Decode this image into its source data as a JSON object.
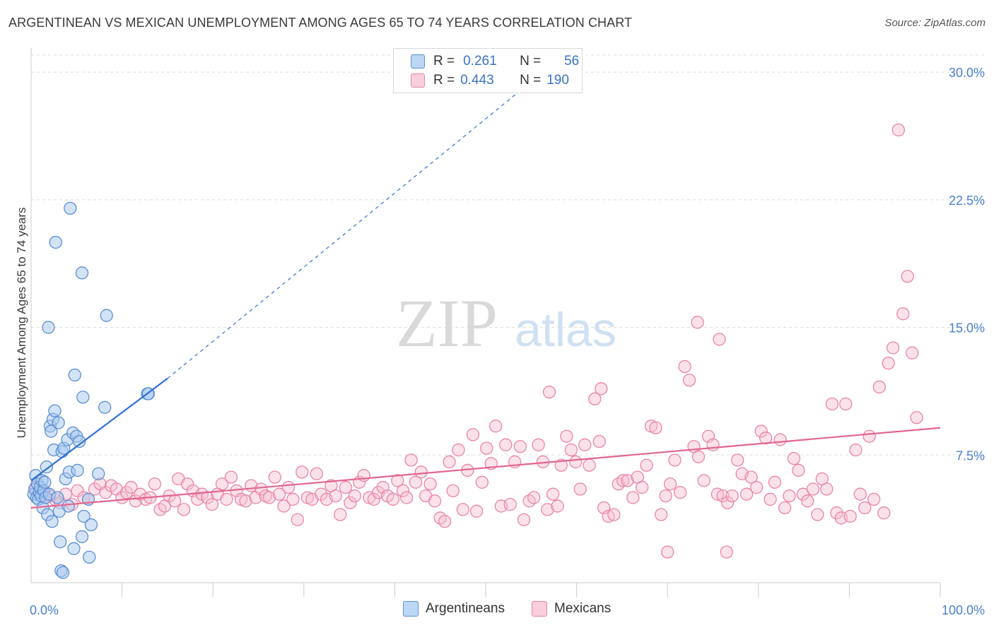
{
  "title": "ARGENTINEAN VS MEXICAN UNEMPLOYMENT AMONG AGES 65 TO 74 YEARS CORRELATION CHART",
  "source": "Source: ZipAtlas.com",
  "watermark": {
    "zip": "ZIP",
    "atlas": "atlas"
  },
  "colors": {
    "argentineans_fill": "#a8c8ee",
    "argentineans_stroke": "#5b8fd6",
    "argentineans_line": "#2f6fd0",
    "mexicans_fill": "#f6bfd0",
    "mexicans_stroke": "#e984a8",
    "mexicans_line": "#e2668f",
    "tick_label": "#4a7fd0",
    "grid": "#dddddd"
  },
  "legend": {
    "rows": [
      {
        "r_label": "R =",
        "r_value": "0.261",
        "n_label": "N =",
        "n_value": "56"
      },
      {
        "r_label": "R =",
        "r_value": "0.443",
        "n_label": "N =",
        "n_value": "190"
      }
    ]
  },
  "bottom_legend": [
    "Argentineans",
    "Mexicans"
  ],
  "chart_data": {
    "type": "scatter",
    "title": "ARGENTINEAN VS MEXICAN UNEMPLOYMENT AMONG AGES 65 TO 74 YEARS CORRELATION CHART",
    "xlabel": "",
    "ylabel": "Unemployment Among Ages 65 to 74 years",
    "xlim": [
      0,
      100
    ],
    "ylim": [
      0,
      31
    ],
    "x_tick_labels": [
      "0.0%",
      "100.0%"
    ],
    "y_ticks": [
      7.5,
      15.0,
      22.5,
      30.0
    ],
    "y_tick_labels": [
      "7.5%",
      "15.0%",
      "22.5%",
      "30.0%"
    ],
    "grid": true,
    "legend_position": "top-center",
    "series": [
      {
        "name": "Argentineans",
        "R": 0.261,
        "N": 56,
        "trend": {
          "x0": 0,
          "y0": 6.0,
          "x1": 15,
          "y1": 12.0,
          "dashed_to_x": 54,
          "dashed_to_y": 29.0
        },
        "points": [
          [
            0.3,
            5.2
          ],
          [
            0.4,
            5.5
          ],
          [
            0.5,
            6.3
          ],
          [
            0.6,
            5.0
          ],
          [
            0.7,
            5.8
          ],
          [
            0.8,
            4.9
          ],
          [
            0.9,
            5.3
          ],
          [
            1.0,
            5.6
          ],
          [
            1.1,
            5.1
          ],
          [
            1.2,
            6.0
          ],
          [
            1.3,
            4.4
          ],
          [
            1.4,
            5.4
          ],
          [
            1.5,
            5.9
          ],
          [
            1.6,
            5.0
          ],
          [
            1.7,
            6.8
          ],
          [
            1.8,
            4.0
          ],
          [
            1.9,
            15.0
          ],
          [
            2.0,
            5.2
          ],
          [
            2.1,
            9.2
          ],
          [
            2.2,
            8.9
          ],
          [
            2.3,
            3.6
          ],
          [
            2.4,
            9.6
          ],
          [
            2.5,
            7.8
          ],
          [
            2.6,
            10.1
          ],
          [
            2.7,
            20.0
          ],
          [
            2.9,
            5.0
          ],
          [
            3.0,
            9.4
          ],
          [
            3.1,
            4.2
          ],
          [
            3.2,
            2.4
          ],
          [
            3.3,
            0.7
          ],
          [
            3.4,
            7.7
          ],
          [
            3.5,
            0.6
          ],
          [
            3.6,
            7.9
          ],
          [
            3.8,
            6.1
          ],
          [
            4.0,
            8.4
          ],
          [
            4.1,
            4.5
          ],
          [
            4.2,
            6.5
          ],
          [
            4.3,
            22.0
          ],
          [
            4.6,
            8.8
          ],
          [
            4.7,
            2.0
          ],
          [
            4.8,
            12.2
          ],
          [
            5.0,
            8.6
          ],
          [
            5.1,
            6.6
          ],
          [
            5.3,
            8.3
          ],
          [
            5.6,
            18.2
          ],
          [
            5.6,
            2.7
          ],
          [
            5.7,
            10.9
          ],
          [
            5.8,
            3.9
          ],
          [
            6.3,
            4.9
          ],
          [
            6.4,
            1.5
          ],
          [
            6.6,
            3.4
          ],
          [
            7.4,
            6.4
          ],
          [
            8.1,
            10.3
          ],
          [
            8.3,
            15.7
          ],
          [
            12.8,
            11.1
          ],
          [
            12.9,
            11.1
          ]
        ]
      },
      {
        "name": "Mexicans",
        "R": 0.443,
        "N": 190,
        "trend": {
          "x0": 0,
          "y0": 4.4,
          "x1": 100,
          "y1": 9.1
        },
        "points": [
          [
            0.5,
            5.6
          ],
          [
            1.2,
            5.4
          ],
          [
            2.0,
            5.1
          ],
          [
            2.6,
            4.9
          ],
          [
            3.2,
            4.7
          ],
          [
            3.8,
            5.2
          ],
          [
            4.5,
            4.6
          ],
          [
            5.1,
            5.4
          ],
          [
            5.8,
            5.0
          ],
          [
            6.3,
            4.9
          ],
          [
            7.0,
            5.5
          ],
          [
            7.6,
            5.8
          ],
          [
            8.2,
            5.3
          ],
          [
            8.8,
            5.7
          ],
          [
            9.4,
            5.5
          ],
          [
            10.0,
            5.0
          ],
          [
            10.5,
            5.3
          ],
          [
            11.0,
            5.6
          ],
          [
            11.5,
            4.8
          ],
          [
            12.0,
            5.2
          ],
          [
            12.6,
            4.9
          ],
          [
            13.1,
            5.0
          ],
          [
            13.6,
            5.8
          ],
          [
            14.2,
            4.3
          ],
          [
            14.7,
            4.5
          ],
          [
            15.2,
            5.1
          ],
          [
            15.8,
            4.8
          ],
          [
            16.2,
            6.1
          ],
          [
            16.8,
            4.3
          ],
          [
            17.2,
            5.8
          ],
          [
            17.8,
            5.4
          ],
          [
            18.3,
            4.9
          ],
          [
            18.8,
            5.2
          ],
          [
            19.4,
            5.0
          ],
          [
            19.9,
            4.6
          ],
          [
            20.5,
            5.2
          ],
          [
            21.0,
            5.8
          ],
          [
            21.5,
            4.9
          ],
          [
            22.0,
            6.2
          ],
          [
            22.6,
            5.4
          ],
          [
            23.1,
            4.9
          ],
          [
            23.6,
            4.8
          ],
          [
            24.2,
            5.7
          ],
          [
            24.7,
            5.0
          ],
          [
            25.3,
            5.5
          ],
          [
            25.8,
            5.1
          ],
          [
            26.2,
            5.0
          ],
          [
            26.8,
            6.2
          ],
          [
            27.3,
            5.2
          ],
          [
            27.8,
            4.5
          ],
          [
            28.3,
            5.6
          ],
          [
            28.8,
            4.9
          ],
          [
            29.3,
            3.7
          ],
          [
            29.8,
            6.5
          ],
          [
            30.4,
            5.0
          ],
          [
            30.9,
            4.9
          ],
          [
            31.4,
            6.4
          ],
          [
            31.9,
            5.2
          ],
          [
            32.5,
            4.9
          ],
          [
            33.0,
            5.7
          ],
          [
            33.5,
            5.1
          ],
          [
            34.0,
            4.0
          ],
          [
            34.6,
            5.6
          ],
          [
            35.1,
            4.7
          ],
          [
            35.6,
            5.1
          ],
          [
            36.1,
            5.9
          ],
          [
            36.6,
            6.3
          ],
          [
            37.2,
            5.0
          ],
          [
            37.7,
            4.9
          ],
          [
            38.2,
            5.3
          ],
          [
            38.7,
            5.6
          ],
          [
            39.2,
            5.1
          ],
          [
            39.8,
            4.9
          ],
          [
            40.3,
            6.0
          ],
          [
            40.9,
            5.4
          ],
          [
            41.3,
            5.0
          ],
          [
            41.8,
            7.2
          ],
          [
            42.3,
            5.9
          ],
          [
            42.9,
            6.5
          ],
          [
            43.4,
            5.1
          ],
          [
            43.9,
            5.8
          ],
          [
            44.4,
            4.8
          ],
          [
            45.0,
            3.8
          ],
          [
            45.5,
            3.6
          ],
          [
            46.0,
            7.1
          ],
          [
            46.4,
            5.4
          ],
          [
            47.0,
            7.8
          ],
          [
            47.5,
            4.3
          ],
          [
            48.0,
            6.6
          ],
          [
            48.6,
            8.7
          ],
          [
            49.0,
            4.2
          ],
          [
            49.6,
            5.9
          ],
          [
            50.1,
            7.9
          ],
          [
            50.6,
            7.0
          ],
          [
            51.1,
            9.2
          ],
          [
            51.7,
            4.5
          ],
          [
            52.2,
            8.1
          ],
          [
            52.7,
            4.6
          ],
          [
            53.2,
            7.1
          ],
          [
            53.8,
            8.0
          ],
          [
            54.2,
            3.7
          ],
          [
            54.8,
            4.8
          ],
          [
            55.3,
            5.0
          ],
          [
            55.8,
            8.1
          ],
          [
            56.3,
            7.1
          ],
          [
            56.8,
            4.3
          ],
          [
            57.4,
            5.2
          ],
          [
            57.9,
            4.5
          ],
          [
            58.3,
            6.9
          ],
          [
            58.9,
            8.6
          ],
          [
            59.4,
            7.8
          ],
          [
            59.9,
            7.1
          ],
          [
            60.4,
            5.5
          ],
          [
            60.9,
            8.1
          ],
          [
            61.4,
            6.9
          ],
          [
            62.0,
            10.8
          ],
          [
            62.5,
            8.3
          ],
          [
            63.0,
            4.4
          ],
          [
            63.5,
            3.9
          ],
          [
            64.1,
            4.0
          ],
          [
            64.6,
            5.8
          ],
          [
            65.1,
            6.0
          ],
          [
            65.6,
            6.0
          ],
          [
            66.2,
            5.0
          ],
          [
            66.7,
            6.2
          ],
          [
            67.2,
            5.6
          ],
          [
            67.7,
            6.9
          ],
          [
            68.2,
            9.2
          ],
          [
            68.7,
            9.1
          ],
          [
            69.3,
            4.0
          ],
          [
            69.8,
            5.1
          ],
          [
            70.3,
            5.8
          ],
          [
            70.8,
            7.2
          ],
          [
            71.4,
            5.3
          ],
          [
            71.9,
            12.7
          ],
          [
            72.4,
            11.9
          ],
          [
            72.9,
            8.0
          ],
          [
            73.4,
            7.4
          ],
          [
            74.0,
            6.0
          ],
          [
            74.5,
            8.6
          ],
          [
            75.0,
            8.1
          ],
          [
            75.5,
            5.2
          ],
          [
            76.1,
            5.1
          ],
          [
            76.6,
            4.7
          ],
          [
            77.1,
            5.1
          ],
          [
            77.7,
            7.2
          ],
          [
            78.2,
            6.4
          ],
          [
            78.7,
            5.2
          ],
          [
            79.2,
            6.2
          ],
          [
            79.8,
            5.6
          ],
          [
            80.3,
            8.9
          ],
          [
            80.8,
            8.5
          ],
          [
            81.3,
            4.9
          ],
          [
            81.8,
            5.9
          ],
          [
            82.4,
            8.4
          ],
          [
            82.9,
            4.4
          ],
          [
            83.4,
            5.1
          ],
          [
            83.9,
            7.3
          ],
          [
            84.4,
            6.6
          ],
          [
            84.9,
            5.2
          ],
          [
            85.4,
            4.8
          ],
          [
            86.0,
            5.5
          ],
          [
            86.5,
            4.0
          ],
          [
            87.0,
            6.1
          ],
          [
            87.5,
            5.5
          ],
          [
            88.1,
            10.5
          ],
          [
            88.6,
            4.1
          ],
          [
            89.1,
            3.8
          ],
          [
            89.6,
            10.5
          ],
          [
            90.1,
            3.9
          ],
          [
            90.7,
            7.8
          ],
          [
            91.2,
            5.2
          ],
          [
            91.7,
            4.4
          ],
          [
            92.2,
            8.6
          ],
          [
            92.7,
            4.9
          ],
          [
            93.3,
            11.5
          ],
          [
            93.8,
            4.1
          ],
          [
            94.3,
            12.9
          ],
          [
            94.8,
            13.8
          ],
          [
            95.4,
            26.6
          ],
          [
            95.9,
            15.8
          ],
          [
            96.4,
            18.0
          ],
          [
            96.9,
            13.5
          ],
          [
            97.4,
            9.7
          ],
          [
            70.0,
            1.8
          ],
          [
            76.5,
            1.8
          ],
          [
            57.0,
            11.2
          ],
          [
            62.7,
            11.4
          ],
          [
            73.3,
            15.3
          ],
          [
            75.7,
            14.3
          ]
        ]
      }
    ]
  }
}
